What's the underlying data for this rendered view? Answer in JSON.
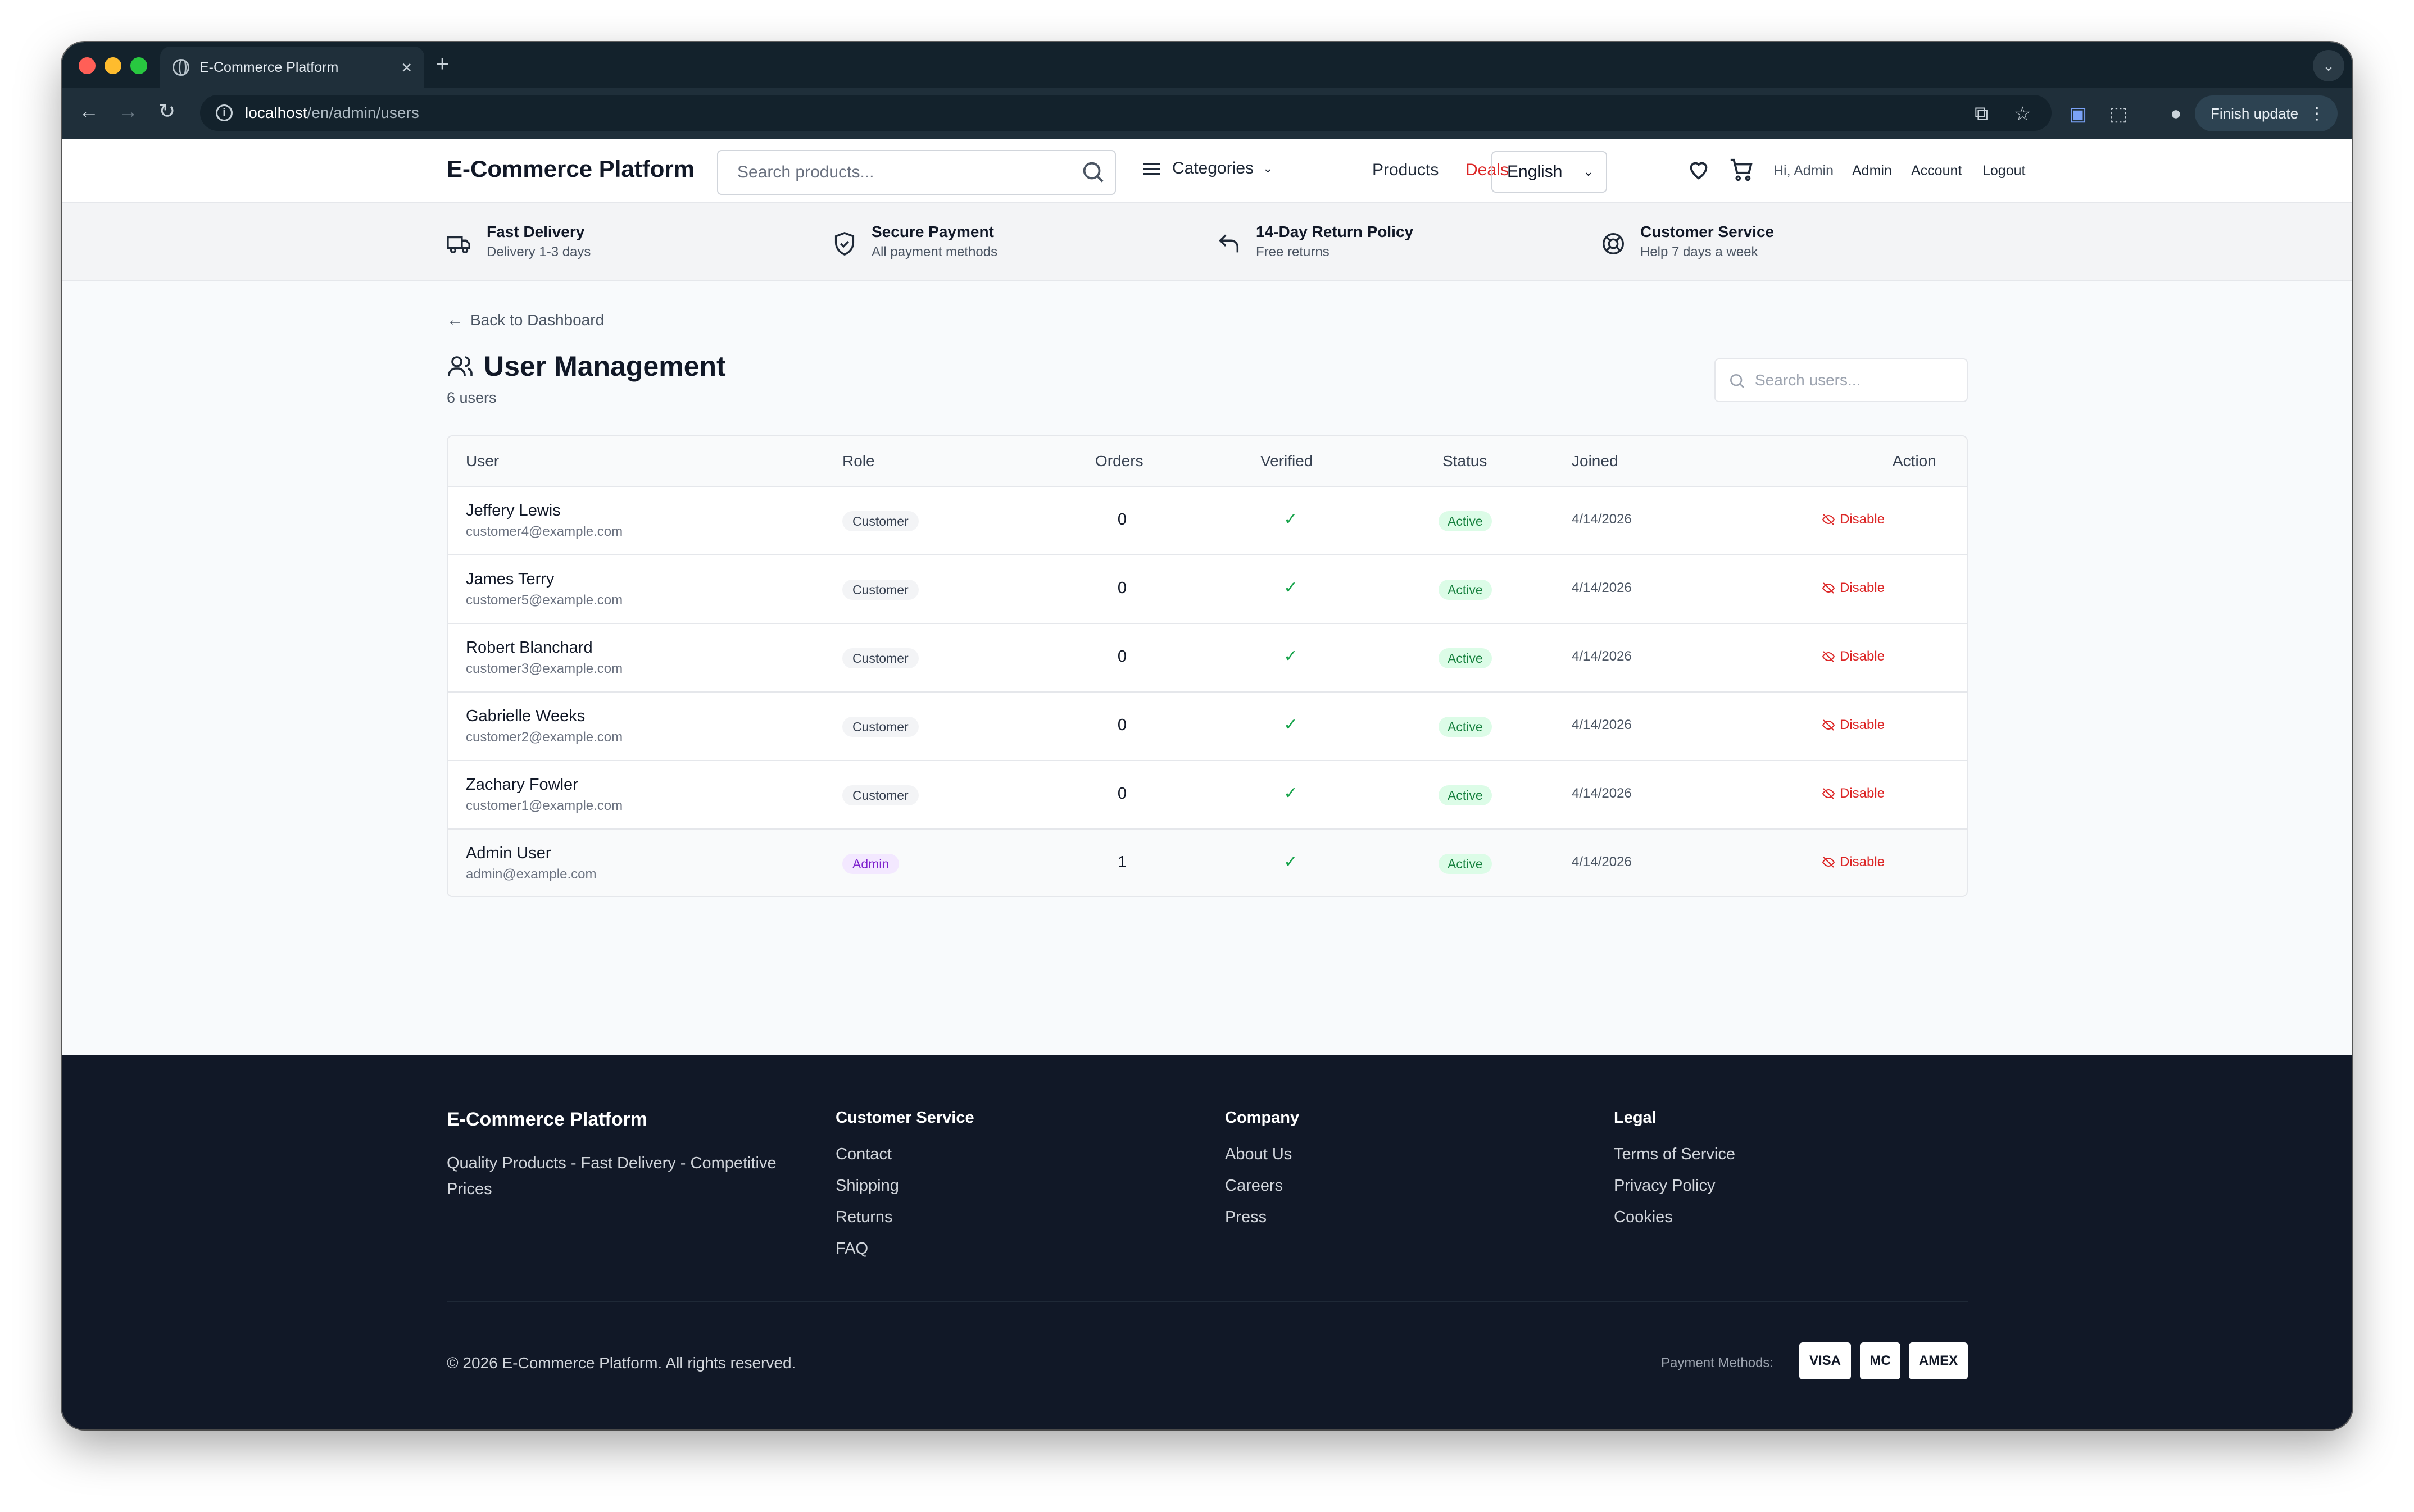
{
  "browser": {
    "tab_title": "E-Commerce Platform",
    "url_host": "localhost",
    "url_path": "/en/admin/users",
    "finish_update_label": "Finish update"
  },
  "header": {
    "brand": "E-Commerce Platform",
    "search_placeholder": "Search products...",
    "categories_label": "Categories",
    "products_label": "Products",
    "deals_label": "Deals",
    "language": "English",
    "greeting": "Hi, Admin",
    "admin_label": "Admin",
    "account_label": "Account",
    "logout_label": "Logout"
  },
  "features": [
    {
      "title": "Fast Delivery",
      "subtitle": "Delivery 1-3 days",
      "icon": "truck-icon"
    },
    {
      "title": "Secure Payment",
      "subtitle": "All payment methods",
      "icon": "shield-check-icon"
    },
    {
      "title": "14-Day Return Policy",
      "subtitle": "Free returns",
      "icon": "undo-arrow-icon"
    },
    {
      "title": "Customer Service",
      "subtitle": "Help 7 days a week",
      "icon": "lifebuoy-icon"
    }
  ],
  "page": {
    "back_label": "Back to Dashboard",
    "title": "User Management",
    "count": "6 users",
    "search_placeholder": "Search users..."
  },
  "table": {
    "columns": [
      "User",
      "Role",
      "Orders",
      "Verified",
      "Status",
      "Joined",
      "Action"
    ],
    "rows": [
      {
        "name": "Jeffery Lewis",
        "email": "customer4@example.com",
        "role": "Customer",
        "orders": "0",
        "verified": "✓",
        "status": "Active",
        "joined": "4/14/2026",
        "action": "Disable"
      },
      {
        "name": "James Terry",
        "email": "customer5@example.com",
        "role": "Customer",
        "orders": "0",
        "verified": "✓",
        "status": "Active",
        "joined": "4/14/2026",
        "action": "Disable"
      },
      {
        "name": "Robert Blanchard",
        "email": "customer3@example.com",
        "role": "Customer",
        "orders": "0",
        "verified": "✓",
        "status": "Active",
        "joined": "4/14/2026",
        "action": "Disable"
      },
      {
        "name": "Gabrielle Weeks",
        "email": "customer2@example.com",
        "role": "Customer",
        "orders": "0",
        "verified": "✓",
        "status": "Active",
        "joined": "4/14/2026",
        "action": "Disable"
      },
      {
        "name": "Zachary Fowler",
        "email": "customer1@example.com",
        "role": "Customer",
        "orders": "0",
        "verified": "✓",
        "status": "Active",
        "joined": "4/14/2026",
        "action": "Disable"
      },
      {
        "name": "Admin User",
        "email": "admin@example.com",
        "role": "Admin",
        "orders": "1",
        "verified": "✓",
        "status": "Active",
        "joined": "4/14/2026",
        "action": "Disable"
      }
    ]
  },
  "footer": {
    "brand": "E-Commerce Platform",
    "tagline": "Quality Products - Fast Delivery - Competitive Prices",
    "customer_service": {
      "heading": "Customer Service",
      "links": [
        "Contact",
        "Shipping",
        "Returns",
        "FAQ"
      ]
    },
    "company": {
      "heading": "Company",
      "links": [
        "About Us",
        "Careers",
        "Press"
      ]
    },
    "legal": {
      "heading": "Legal",
      "links": [
        "Terms of Service",
        "Privacy Policy",
        "Cookies"
      ]
    },
    "copyright": "© 2026 E-Commerce Platform. All rights reserved.",
    "payment_label": "Payment Methods:",
    "payment_methods": [
      "VISA",
      "MC",
      "AMEX"
    ]
  },
  "colors": {
    "accent_deals": "#dc2626",
    "status_active_bg": "#dcfce7",
    "status_active_text": "#15803d",
    "admin_badge_bg": "#f3e8ff",
    "admin_badge_text": "#7e22ce",
    "footer_bg": "#111827"
  }
}
